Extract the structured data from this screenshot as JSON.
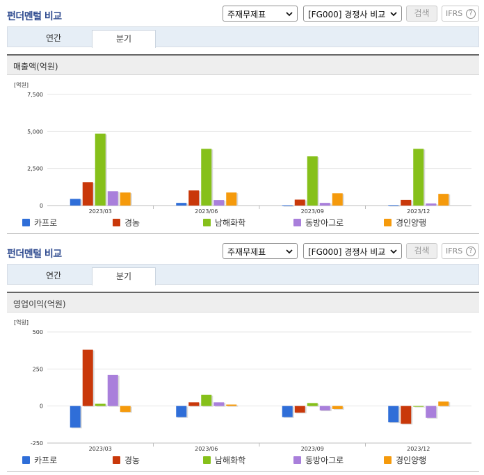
{
  "sections": [
    {
      "header": {
        "title": "펀더멘털 비교",
        "select1": "주재무제표",
        "select2": "[FG000] 경쟁사 비교",
        "search": "검색",
        "ifrs": "IFRS",
        "help": "?"
      },
      "tabs": [
        "연간",
        "분기"
      ],
      "active_tab": "분기",
      "panel_title": "매출액(억원)",
      "chart_data": {
        "type": "bar",
        "unit": "[억원]",
        "categories": [
          "2023/03",
          "2023/06",
          "2023/09",
          "2023/12"
        ],
        "yticks": [
          "7,500",
          "5,000",
          "2,500",
          "0"
        ],
        "ylim": [
          0,
          7500
        ],
        "tick_values": [
          7500,
          5000,
          2500,
          0
        ],
        "grid": true,
        "legend_position": "bottom",
        "series": [
          {
            "name": "카프로",
            "color": "#2f6ed8",
            "values": [
              450,
              180,
              20,
              30
            ]
          },
          {
            "name": "경농",
            "color": "#c9380a",
            "values": [
              1580,
              1020,
              400,
              380
            ]
          },
          {
            "name": "남해화학",
            "color": "#86c01a",
            "values": [
              4850,
              3830,
              3320,
              3830
            ]
          },
          {
            "name": "동방아그로",
            "color": "#a97fdb",
            "values": [
              970,
              370,
              180,
              140
            ]
          },
          {
            "name": "경인양행",
            "color": "#f59a0c",
            "values": [
              880,
              880,
              830,
              790
            ]
          }
        ]
      }
    },
    {
      "header": {
        "title": "펀더멘털 비교",
        "select1": "주재무제표",
        "select2": "[FG000] 경쟁사 비교",
        "search": "검색",
        "ifrs": "IFRS",
        "help": "?"
      },
      "tabs": [
        "연간",
        "분기"
      ],
      "active_tab": "분기",
      "panel_title": "영업이익(억원)",
      "chart_data": {
        "type": "bar",
        "unit": "[억원]",
        "categories": [
          "2023/03",
          "2023/06",
          "2023/09",
          "2023/12"
        ],
        "yticks": [
          "500",
          "250",
          "0",
          "-250"
        ],
        "ylim": [
          -250,
          500
        ],
        "tick_values": [
          500,
          250,
          0,
          -250
        ],
        "grid": true,
        "legend_position": "bottom",
        "series": [
          {
            "name": "카프로",
            "color": "#2f6ed8",
            "values": [
              -145,
              -75,
              -75,
              -110
            ]
          },
          {
            "name": "경농",
            "color": "#c9380a",
            "values": [
              380,
              25,
              -45,
              -120
            ]
          },
          {
            "name": "남해화학",
            "color": "#86c01a",
            "values": [
              15,
              75,
              20,
              0
            ]
          },
          {
            "name": "동방아그로",
            "color": "#a97fdb",
            "values": [
              210,
              25,
              -30,
              -80
            ]
          },
          {
            "name": "경인양행",
            "color": "#f59a0c",
            "values": [
              -40,
              10,
              -20,
              30
            ]
          }
        ]
      }
    }
  ]
}
